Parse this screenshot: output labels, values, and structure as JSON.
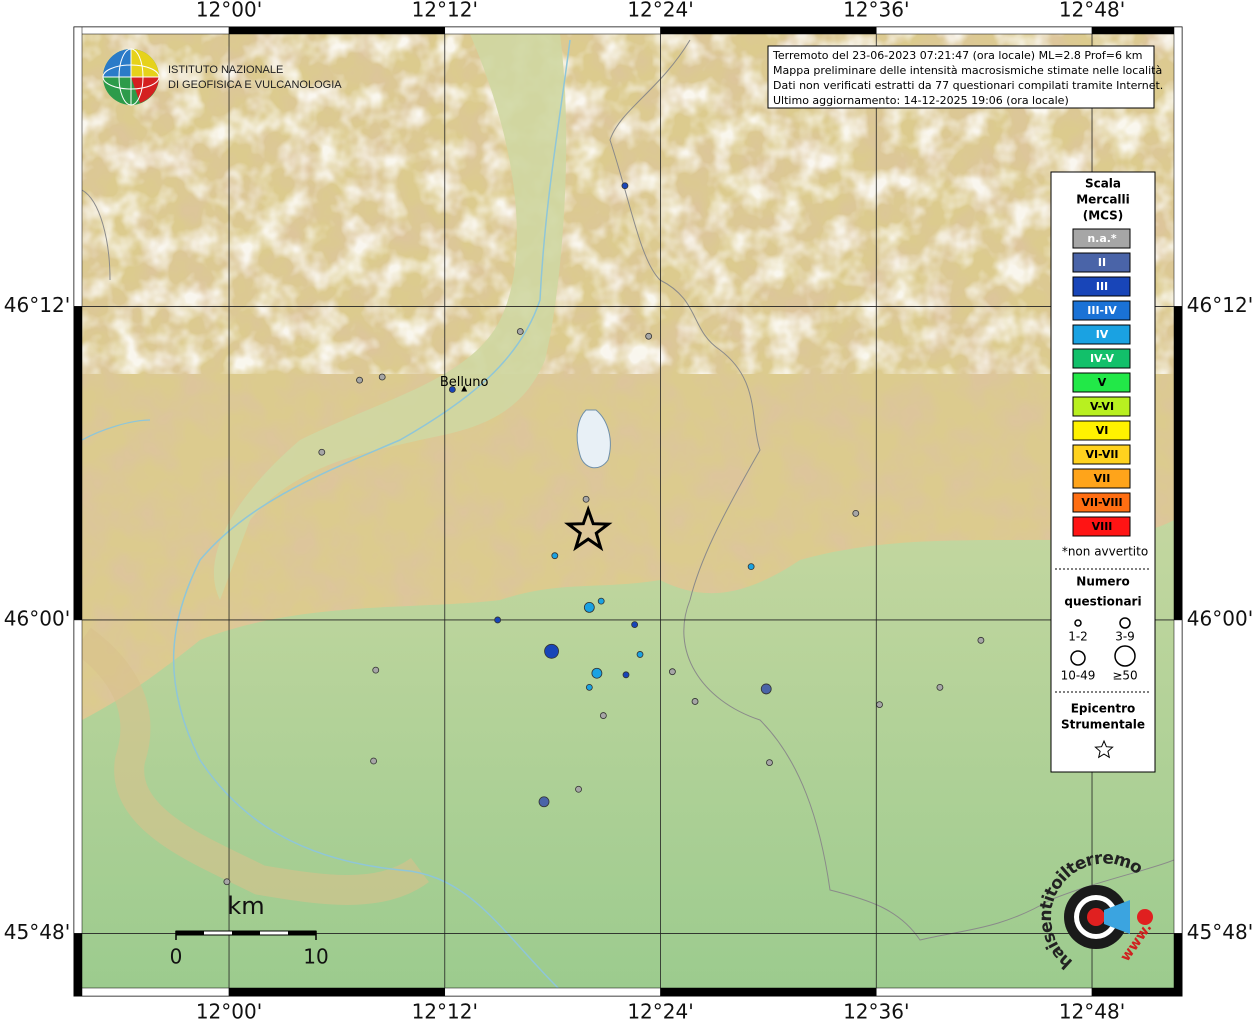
{
  "map": {
    "info_box": [
      "Terremoto del 23-06-2023 07:21:47 (ora locale) ML=2.8 Prof=6 km",
      "Mappa preliminare delle intensità macrosismiche stimate nelle località",
      "Dati non verificati estratti da 77 questionari compilati tramite Internet.",
      "Ultimo aggiornamento: 14-12-2025 19:06 (ora locale)"
    ],
    "institute_logo": [
      "ISTITUTO NAZIONALE",
      "DI GEOFISICA E VULCANOLOGIA"
    ],
    "site_logo": [
      "haisentitoilterremoto.it",
      "www."
    ],
    "xlim": [
      11.8637,
      12.876
    ],
    "ylim": [
      45.7652,
      46.3738
    ],
    "xticks": [
      {
        "value": 12.0,
        "label": "12°00'"
      },
      {
        "value": 12.2,
        "label": "12°12'"
      },
      {
        "value": 12.4,
        "label": "12°24'"
      },
      {
        "value": 12.6,
        "label": "12°36'"
      },
      {
        "value": 12.8,
        "label": "12°48'"
      }
    ],
    "yticks": [
      {
        "value": 45.8,
        "label": "45°48'"
      },
      {
        "value": 46.0,
        "label": "46°00'"
      },
      {
        "value": 46.2,
        "label": "46°12'"
      }
    ],
    "grid": true,
    "city": {
      "name": "Belluno",
      "lon": 12.218,
      "lat": 46.147
    },
    "epicenter": {
      "lon": 12.333,
      "lat": 46.057
    },
    "scale_bar": {
      "unit": "km",
      "ticks": [
        0,
        10
      ]
    },
    "legend": {
      "title": [
        "Scala",
        "Mercalli",
        "(MCS)"
      ],
      "classes": [
        {
          "label": "n.a.*",
          "color": "#a6a6a6"
        },
        {
          "label": "II",
          "color": "#4a64a8"
        },
        {
          "label": "III",
          "color": "#1845b8"
        },
        {
          "label": "III-IV",
          "color": "#1a72d6"
        },
        {
          "label": "IV",
          "color": "#1aa2e2"
        },
        {
          "label": "IV-V",
          "color": "#12c06a"
        },
        {
          "label": "V",
          "color": "#22e848"
        },
        {
          "label": "V-VI",
          "color": "#b8f020"
        },
        {
          "label": "VI",
          "color": "#fff200"
        },
        {
          "label": "VI-VII",
          "color": "#ffd21e"
        },
        {
          "label": "VII",
          "color": "#ffa41a"
        },
        {
          "label": "VII-VIII",
          "color": "#ff6e12"
        },
        {
          "label": "VIII",
          "color": "#ff1414"
        }
      ],
      "footnote": "*non avvertito",
      "count_title": [
        "Numero",
        "questionari"
      ],
      "count_classes": [
        "1-2",
        "3-9",
        "10-49",
        "≥50"
      ],
      "epicenter_title": [
        "Epicentro",
        "Strumentale"
      ]
    },
    "points": [
      {
        "lon": 12.367,
        "lat": 46.277,
        "intensity": "III",
        "count": "1-2"
      },
      {
        "lon": 12.27,
        "lat": 46.184,
        "intensity": "n.a.*",
        "count": "1-2"
      },
      {
        "lon": 12.389,
        "lat": 46.181,
        "intensity": "n.a.*",
        "count": "1-2"
      },
      {
        "lon": 12.121,
        "lat": 46.153,
        "intensity": "n.a.*",
        "count": "1-2"
      },
      {
        "lon": 12.142,
        "lat": 46.155,
        "intensity": "n.a.*",
        "count": "1-2"
      },
      {
        "lon": 12.207,
        "lat": 46.147,
        "intensity": "III",
        "count": "1-2"
      },
      {
        "lon": 12.086,
        "lat": 46.107,
        "intensity": "n.a.*",
        "count": "1-2"
      },
      {
        "lon": 12.331,
        "lat": 46.077,
        "intensity": "n.a.*",
        "count": "1-2"
      },
      {
        "lon": 12.581,
        "lat": 46.068,
        "intensity": "n.a.*",
        "count": "1-2"
      },
      {
        "lon": 12.302,
        "lat": 46.041,
        "intensity": "IV",
        "count": "1-2"
      },
      {
        "lon": 12.484,
        "lat": 46.034,
        "intensity": "IV",
        "count": "1-2"
      },
      {
        "lon": 12.345,
        "lat": 46.012,
        "intensity": "IV",
        "count": "1-2"
      },
      {
        "lon": 12.334,
        "lat": 46.008,
        "intensity": "IV",
        "count": "3-9"
      },
      {
        "lon": 12.249,
        "lat": 46.0,
        "intensity": "III",
        "count": "1-2"
      },
      {
        "lon": 12.376,
        "lat": 45.997,
        "intensity": "III",
        "count": "1-2"
      },
      {
        "lon": 12.697,
        "lat": 45.987,
        "intensity": "n.a.*",
        "count": "1-2"
      },
      {
        "lon": 12.299,
        "lat": 45.98,
        "intensity": "III",
        "count": "10-49"
      },
      {
        "lon": 12.381,
        "lat": 45.978,
        "intensity": "IV",
        "count": "1-2"
      },
      {
        "lon": 12.136,
        "lat": 45.968,
        "intensity": "n.a.*",
        "count": "1-2"
      },
      {
        "lon": 12.411,
        "lat": 45.967,
        "intensity": "n.a.*",
        "count": "1-2"
      },
      {
        "lon": 12.341,
        "lat": 45.966,
        "intensity": "IV",
        "count": "3-9"
      },
      {
        "lon": 12.368,
        "lat": 45.965,
        "intensity": "III",
        "count": "1-2"
      },
      {
        "lon": 12.334,
        "lat": 45.957,
        "intensity": "IV",
        "count": "1-2"
      },
      {
        "lon": 12.498,
        "lat": 45.956,
        "intensity": "II",
        "count": "3-9"
      },
      {
        "lon": 12.659,
        "lat": 45.957,
        "intensity": "n.a.*",
        "count": "1-2"
      },
      {
        "lon": 12.432,
        "lat": 45.948,
        "intensity": "n.a.*",
        "count": "1-2"
      },
      {
        "lon": 12.603,
        "lat": 45.946,
        "intensity": "n.a.*",
        "count": "1-2"
      },
      {
        "lon": 12.347,
        "lat": 45.939,
        "intensity": "n.a.*",
        "count": "1-2"
      },
      {
        "lon": 12.134,
        "lat": 45.91,
        "intensity": "n.a.*",
        "count": "1-2"
      },
      {
        "lon": 12.501,
        "lat": 45.909,
        "intensity": "n.a.*",
        "count": "1-2"
      },
      {
        "lon": 12.324,
        "lat": 45.892,
        "intensity": "n.a.*",
        "count": "1-2"
      },
      {
        "lon": 12.292,
        "lat": 45.884,
        "intensity": "II",
        "count": "3-9"
      },
      {
        "lon": 11.998,
        "lat": 45.833,
        "intensity": "n.a.*",
        "count": "1-2"
      }
    ]
  }
}
